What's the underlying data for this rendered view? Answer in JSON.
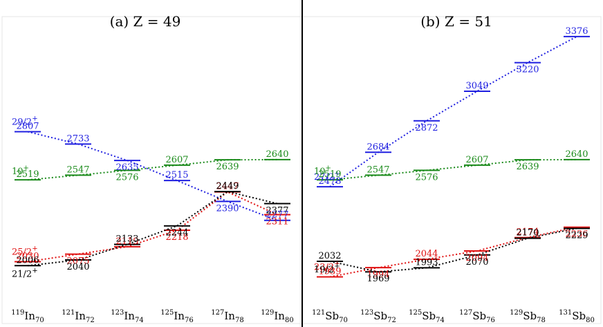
{
  "colors": {
    "blue": "#1f1fe0",
    "green": "#1a8a1a",
    "red": "#e01010",
    "black": "#000000"
  },
  "chart_data": [
    {
      "type": "line",
      "title": "(a) Z = 49",
      "categories": [
        {
          "A": "119",
          "el": "In",
          "N": "70"
        },
        {
          "A": "121",
          "el": "In",
          "N": "72"
        },
        {
          "A": "123",
          "el": "In",
          "N": "74"
        },
        {
          "A": "125",
          "el": "In",
          "N": "76"
        },
        {
          "A": "127",
          "el": "In",
          "N": "78"
        },
        {
          "A": "129",
          "el": "In",
          "N": "80"
        }
      ],
      "ylim": [
        1850,
        3450
      ],
      "series": [
        {
          "color": "blue",
          "tag": "29/2+",
          "values": [
            2807,
            2733,
            2635,
            2515,
            2390,
            2277
          ]
        },
        {
          "color": "green",
          "tag": "10+",
          "values": [
            2519,
            2547,
            2576,
            2607,
            2639,
            2640
          ]
        },
        {
          "color": "red",
          "tag": "25/2+",
          "values": [
            2030,
            2075,
            2119,
            2218,
            2447,
            2311
          ]
        },
        {
          "color": "black",
          "tag": "21/2+",
          "values": [
            2006,
            2040,
            2133,
            2244,
            2449,
            2377
          ]
        }
      ]
    },
    {
      "type": "line",
      "title": "(b) Z = 51",
      "categories": [
        {
          "A": "121",
          "el": "Sb",
          "N": "70"
        },
        {
          "A": "123",
          "el": "Sb",
          "N": "72"
        },
        {
          "A": "125",
          "el": "Sb",
          "N": "74"
        },
        {
          "A": "127",
          "el": "Sb",
          "N": "76"
        },
        {
          "A": "129",
          "el": "Sb",
          "N": "78"
        },
        {
          "A": "131",
          "el": "Sb",
          "N": "80"
        }
      ],
      "ylim": [
        1850,
        3450
      ],
      "series": [
        {
          "color": "blue",
          "tag": "27/2+",
          "values": [
            2478,
            2684,
            2872,
            3049,
            3220,
            3376
          ]
        },
        {
          "color": "green",
          "tag": "10+",
          "values": [
            2519,
            2547,
            2576,
            2607,
            2639,
            2640
          ]
        },
        {
          "color": "red",
          "tag": "23/2+",
          "values": [
            1939,
            1994,
            2044,
            2094,
            2174,
            2236
          ]
        },
        {
          "color": "black",
          "tag": "19/2+",
          "values": [
            2032,
            1969,
            1993,
            2070,
            2170,
            2229
          ]
        }
      ]
    }
  ]
}
